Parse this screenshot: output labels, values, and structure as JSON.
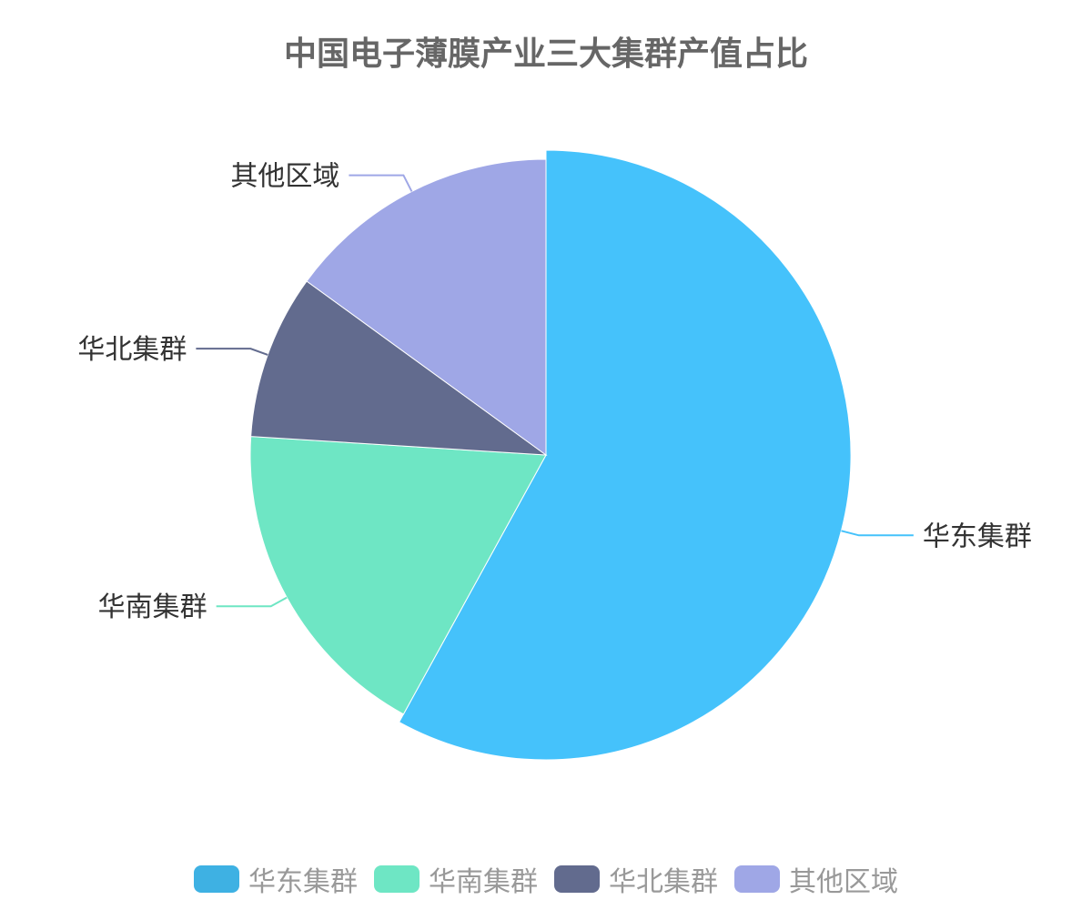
{
  "chart_data": {
    "type": "pie",
    "title": "中国电子薄膜产业三大集群产值占比",
    "categories": [
      "华东集群",
      "华南集群",
      "华北集群",
      "其他区域"
    ],
    "values": [
      58,
      18,
      9,
      15
    ],
    "colors": [
      "#3EB1E3",
      "#6EE6C4",
      "#626B8E",
      "#9FA7E6"
    ],
    "highlighted": "华东集群",
    "highlight_color": "#45C2FB",
    "legend_position": "bottom"
  }
}
